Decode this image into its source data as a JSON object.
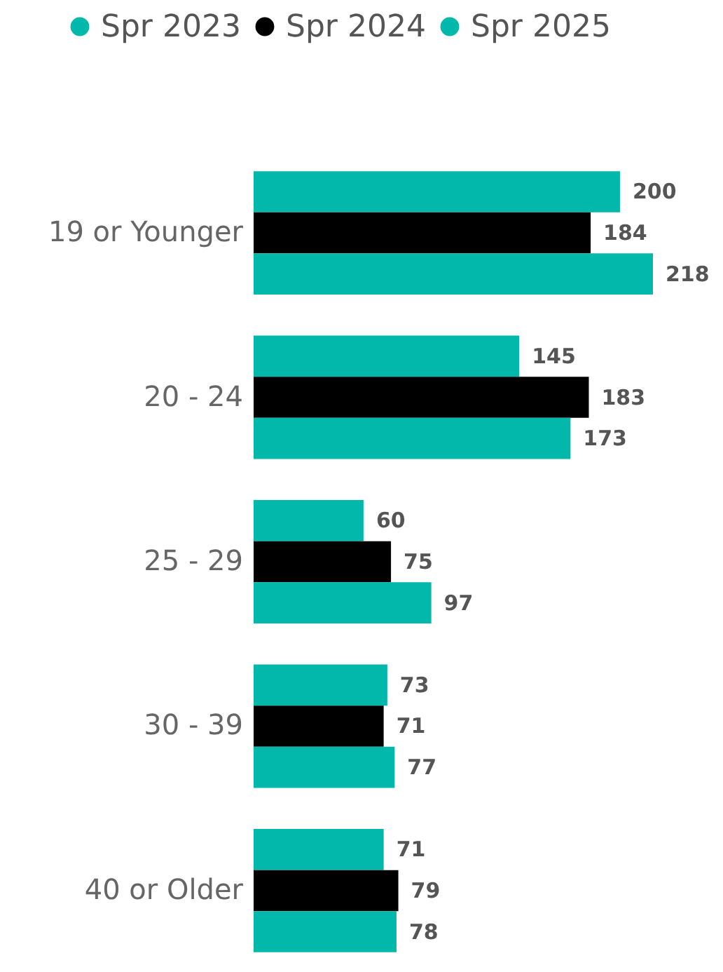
{
  "chart_data": {
    "type": "bar",
    "orientation": "horizontal",
    "categories": [
      "19 or Younger",
      "20 - 24",
      "25 - 29",
      "30 - 39",
      "40 or Older"
    ],
    "series": [
      {
        "name": "Spr 2023",
        "color": "#01b8aa",
        "values": [
          200,
          145,
          60,
          73,
          71
        ]
      },
      {
        "name": "Spr 2024",
        "color": "#000000",
        "values": [
          184,
          183,
          75,
          71,
          79
        ]
      },
      {
        "name": "Spr 2025",
        "color": "#01b8aa",
        "values": [
          218,
          173,
          97,
          77,
          78
        ]
      }
    ],
    "data_labels": true,
    "legend": "top left",
    "tick_labels": "y"
  }
}
